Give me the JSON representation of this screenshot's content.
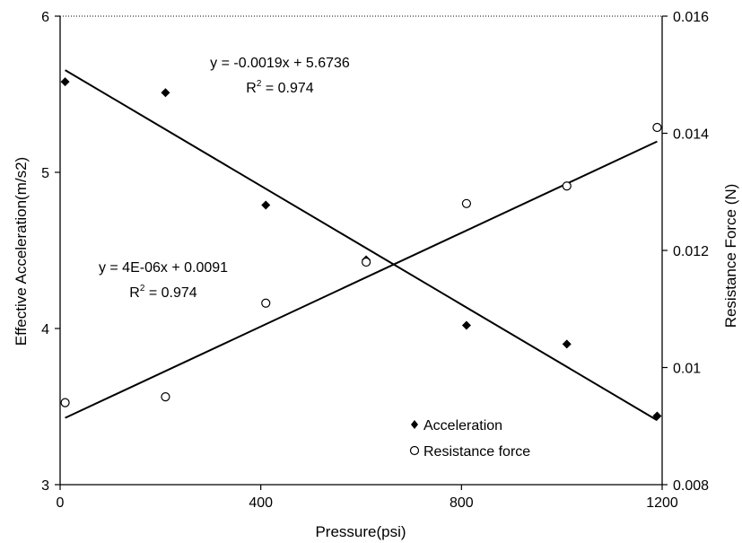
{
  "chart_data": {
    "type": "scatter",
    "xlabel": "Pressure(psi)",
    "ylabel_left": "Effective Acceleration(m/s2)",
    "ylabel_right": "Resistance Force (N)",
    "xlim": [
      0,
      1200
    ],
    "ylim_left": [
      3,
      6
    ],
    "ylim_right": [
      0.008,
      0.016
    ],
    "x_ticks": [
      "0",
      "400",
      "800",
      "1200"
    ],
    "y_left_ticks": [
      "3",
      "4",
      "5",
      "6"
    ],
    "y_right_ticks": [
      "0.008",
      "0.01",
      "0.012",
      "0.014",
      "0.016"
    ],
    "grid": false,
    "legend_position": "bottom-right",
    "series": [
      {
        "name": "Acceleration",
        "axis": "left",
        "marker": "filled-diamond",
        "x": [
          10,
          210,
          410,
          610,
          810,
          1010,
          1190
        ],
        "y": [
          5.58,
          5.51,
          4.79,
          4.44,
          4.02,
          3.9,
          3.44
        ],
        "trendline": {
          "slope": -0.0019,
          "intercept": 5.6736,
          "equation": "y = -0.0019x + 5.6736",
          "r2_label": "R",
          "r2_sup": "2",
          "r2_value": " = 0.974"
        }
      },
      {
        "name": "Resistance force",
        "axis": "right",
        "marker": "open-circle",
        "x": [
          10,
          210,
          410,
          610,
          810,
          1010,
          1190
        ],
        "y": [
          0.0094,
          0.0095,
          0.0111,
          0.0118,
          0.0128,
          0.0131,
          0.0141
        ],
        "trendline": {
          "slope": 4e-06,
          "intercept": 0.0091,
          "equation": "y = 4E-06x + 0.0091",
          "r2_label": "R",
          "r2_sup": "2",
          "r2_value": " = 0.974"
        }
      }
    ]
  }
}
